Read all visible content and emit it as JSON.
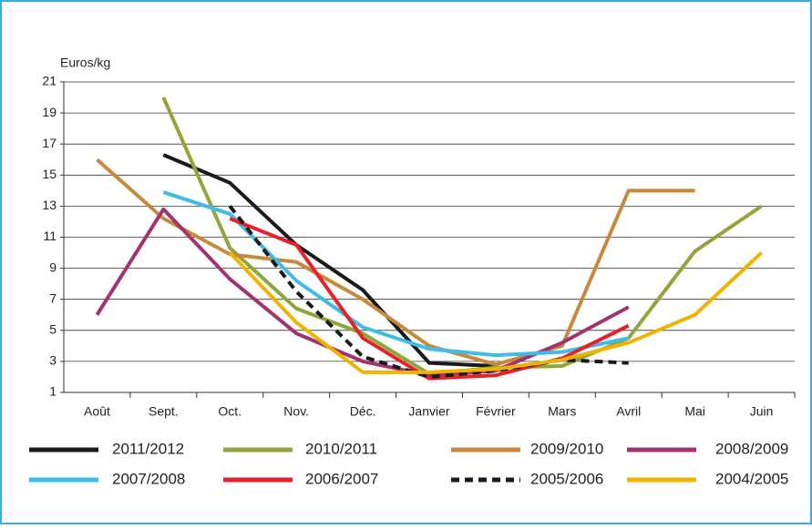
{
  "chart_data": {
    "type": "line",
    "y_axis_label": "Euros/kg",
    "categories": [
      "Août",
      "Sept.",
      "Oct.",
      "Nov.",
      "Déc.",
      "Janvier",
      "Février",
      "Mars",
      "Avril",
      "Mai",
      "Juin"
    ],
    "ylim": [
      1,
      21
    ],
    "yticks": [
      1,
      3,
      5,
      7,
      9,
      11,
      13,
      15,
      17,
      19,
      21
    ],
    "grid": true,
    "series": [
      {
        "name": "2011/2012",
        "color": "#1a1a1a",
        "values": [
          null,
          16.3,
          14.5,
          10.5,
          7.6,
          2.9,
          2.7,
          null,
          null,
          null,
          null
        ]
      },
      {
        "name": "2010/2011",
        "color": "#8ea63a",
        "values": [
          null,
          20,
          10.3,
          6.4,
          4.8,
          2.2,
          2.6,
          2.7,
          4.5,
          10.1,
          13
        ]
      },
      {
        "name": "2009/2010",
        "color": "#c8893a",
        "values": [
          16,
          12.2,
          9.9,
          9.4,
          7,
          4,
          2.8,
          4,
          14,
          14,
          null
        ]
      },
      {
        "name": "2008/2009",
        "color": "#a3336e",
        "values": [
          6,
          12.8,
          8.3,
          4.8,
          3,
          2.1,
          2.4,
          4.2,
          6.5,
          null,
          null
        ]
      },
      {
        "name": "2007/2008",
        "color": "#3dbde8",
        "values": [
          null,
          13.9,
          12.5,
          8.2,
          5.2,
          3.8,
          3.4,
          3.6,
          4.5,
          null,
          null
        ]
      },
      {
        "name": "2006/2007",
        "color": "#e8202a",
        "values": [
          null,
          null,
          12.2,
          10.5,
          4.5,
          1.9,
          2.1,
          3.2,
          5.3,
          null,
          null
        ]
      },
      {
        "name": "2005/2006",
        "color": "#1a1a1a",
        "dashed": true,
        "values": [
          null,
          null,
          13,
          7.5,
          3.3,
          2,
          2.4,
          3.1,
          2.9,
          null,
          null
        ]
      },
      {
        "name": "2004/2005",
        "color": "#f2b200",
        "values": [
          null,
          null,
          10,
          5.5,
          2.3,
          2.3,
          2.5,
          3.1,
          4.2,
          6,
          10
        ]
      }
    ]
  }
}
